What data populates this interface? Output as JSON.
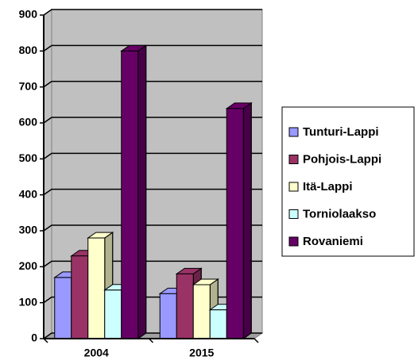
{
  "chart_data": {
    "type": "bar3d",
    "categories": [
      "2004",
      "2015"
    ],
    "series": [
      {
        "name": "Tunturi-Lappi",
        "color": "#9999ff",
        "values": [
          170,
          125
        ]
      },
      {
        "name": "Pohjois-Lappi",
        "color": "#993366",
        "values": [
          230,
          180
        ]
      },
      {
        "name": "Itä-Lappi",
        "color": "#ffffcc",
        "values": [
          280,
          150
        ]
      },
      {
        "name": "Torniolaakso",
        "color": "#ccffff",
        "values": [
          135,
          80
        ]
      },
      {
        "name": "Rovaniemi",
        "color": "#660066",
        "values": [
          800,
          640
        ]
      }
    ],
    "ylim": [
      0,
      900
    ],
    "yticks": [
      0,
      100,
      200,
      300,
      400,
      500,
      600,
      700,
      800,
      900
    ],
    "grid": true,
    "legend": "right"
  }
}
